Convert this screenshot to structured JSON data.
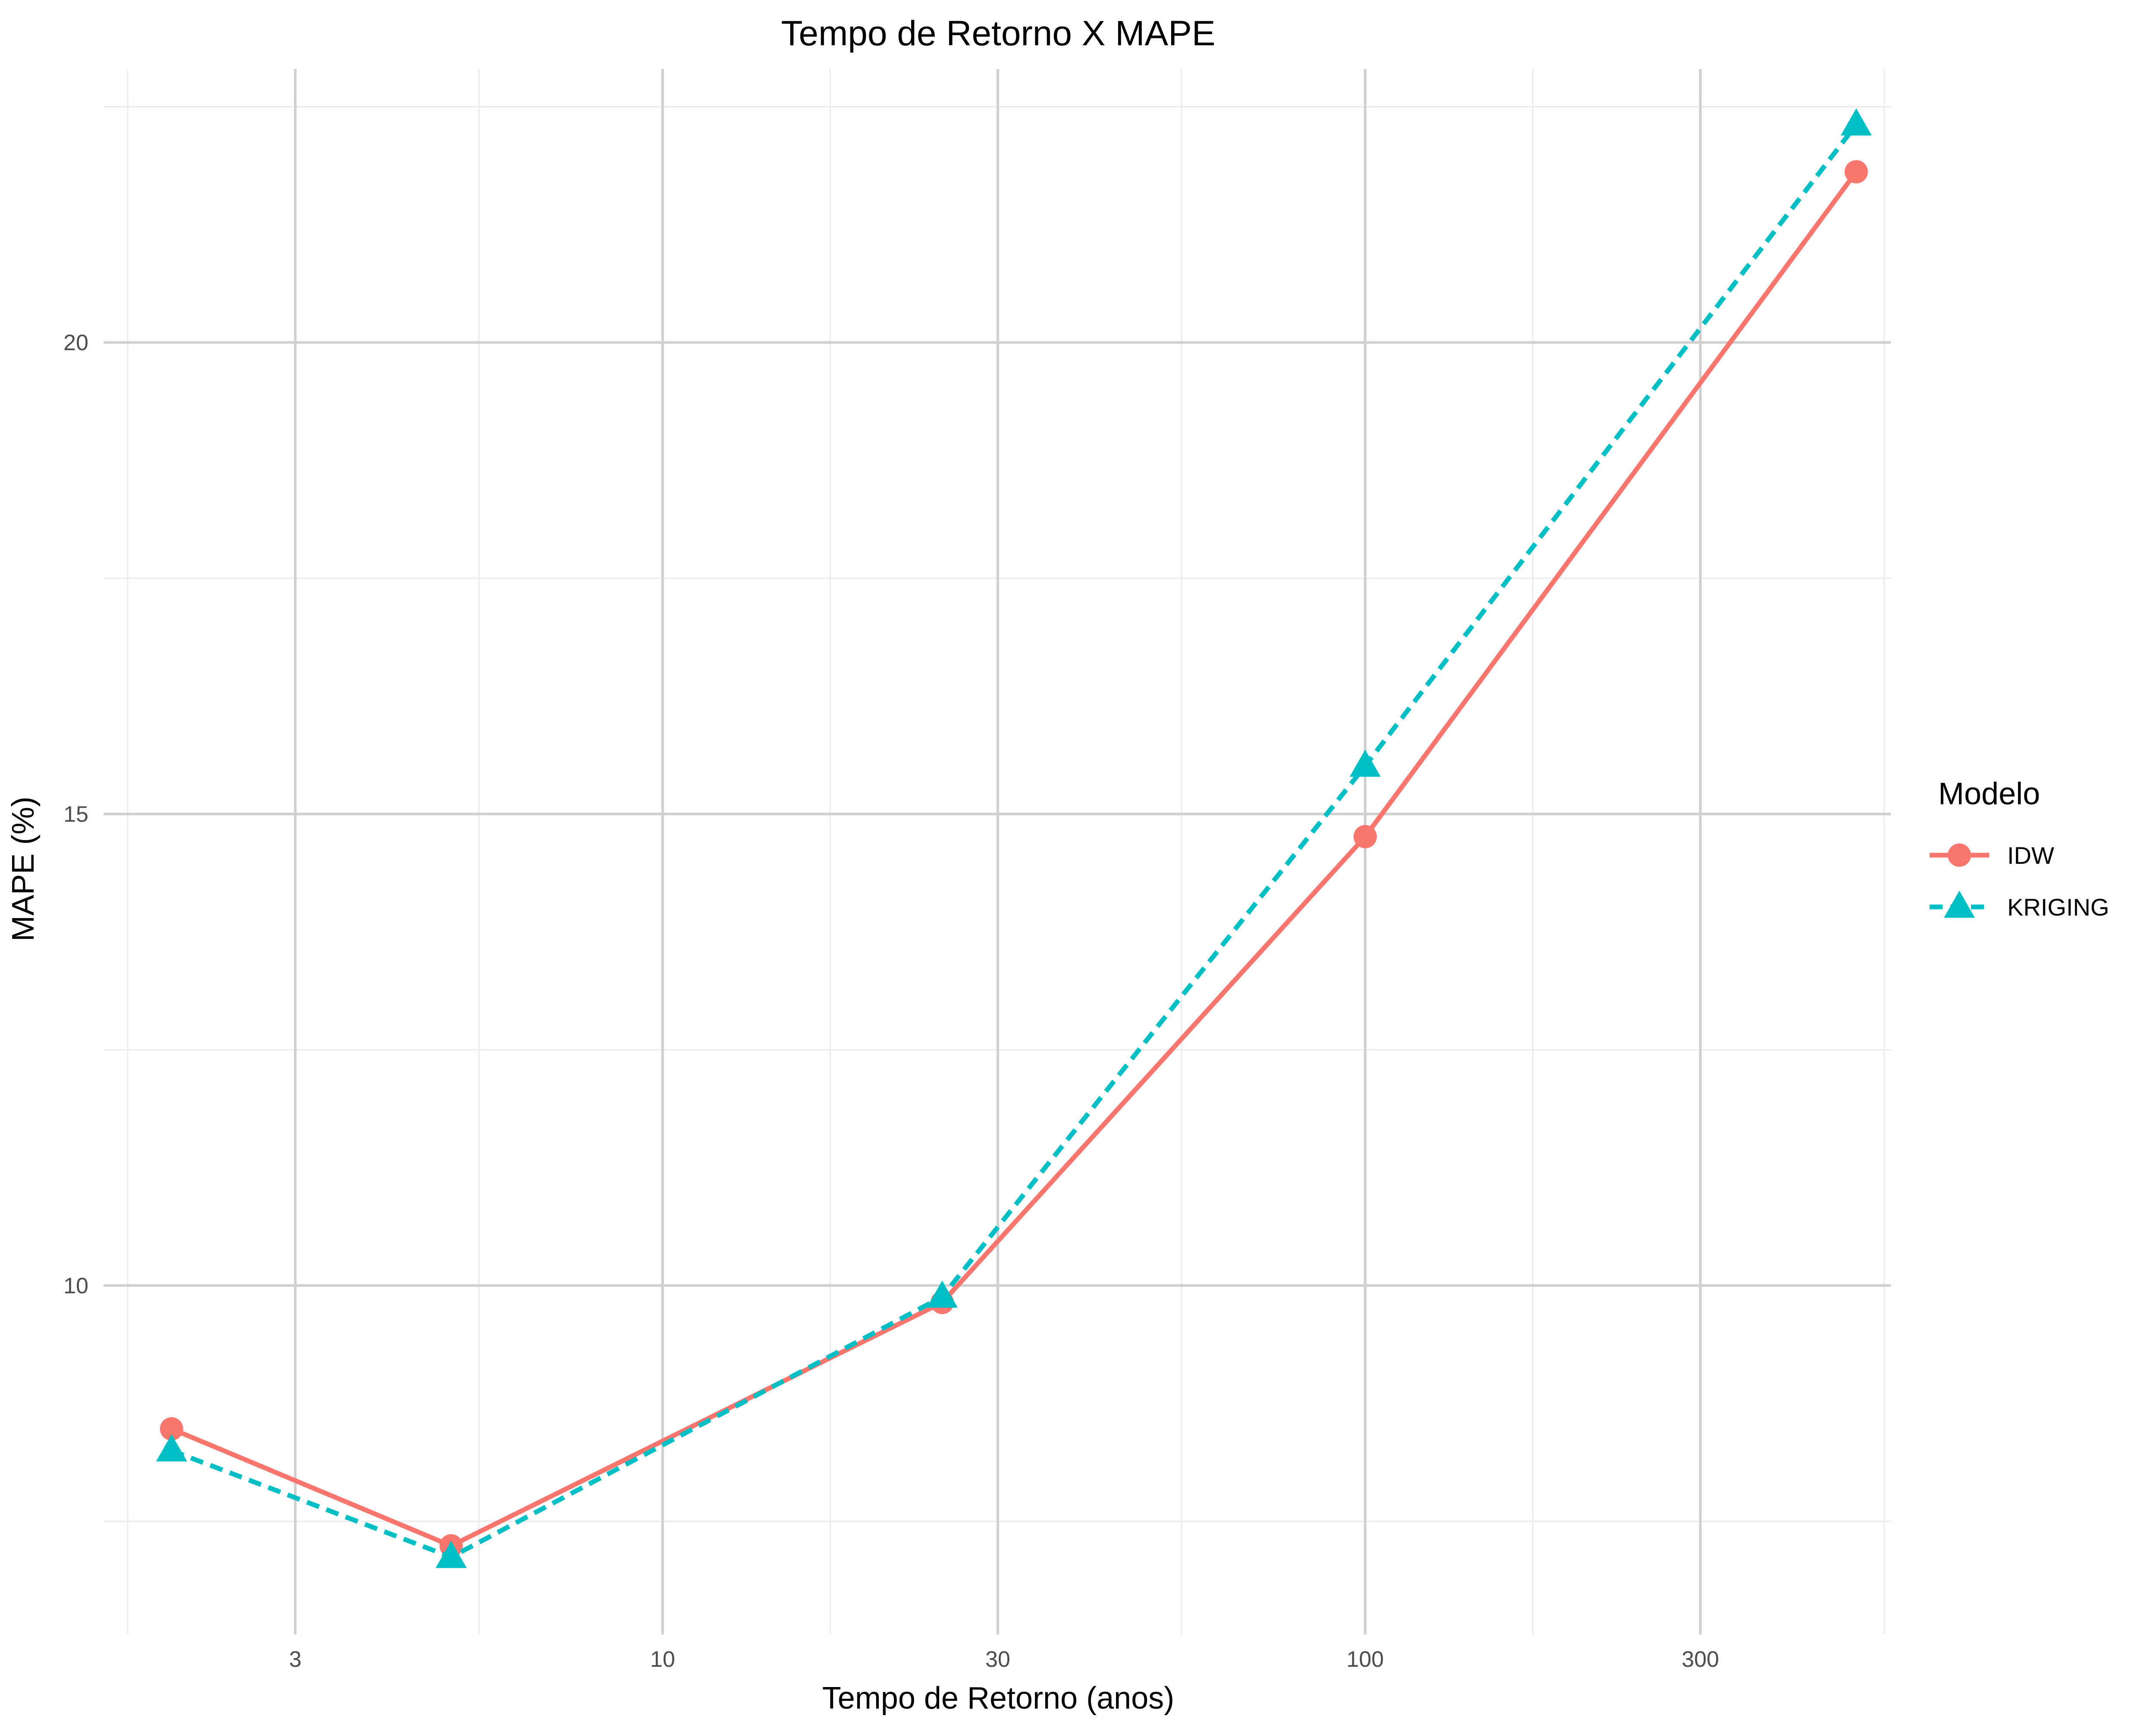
{
  "chart_data": {
    "type": "line",
    "title": "Tempo de Retorno X MAPE",
    "xlabel": "Tempo de Retorno (anos)",
    "ylabel": "MAPE (%)",
    "x_scale": "log10",
    "x": [
      2,
      5,
      25,
      100,
      500
    ],
    "xlim": [
      1.6,
      560
    ],
    "ylim": [
      6.3,
      22.9
    ],
    "x_ticks": [
      3,
      10,
      30,
      100,
      300
    ],
    "x_tick_labels": [
      "3",
      "10",
      "30",
      "100",
      "300"
    ],
    "y_ticks": [
      10,
      15,
      20
    ],
    "y_tick_labels": [
      "10",
      "15",
      "20"
    ],
    "grid": true,
    "legend": {
      "title": "Modelo",
      "position": "right"
    },
    "series": [
      {
        "name": "IDW",
        "values": [
          8.48,
          7.24,
          9.82,
          14.76,
          21.81
        ],
        "color": "#F8766D",
        "marker": "circle",
        "line_style": "solid"
      },
      {
        "name": "KRIGING",
        "values": [
          8.25,
          7.12,
          9.88,
          15.51,
          22.31
        ],
        "color": "#00BFC4",
        "marker": "triangle",
        "line_style": "dashed"
      }
    ]
  }
}
